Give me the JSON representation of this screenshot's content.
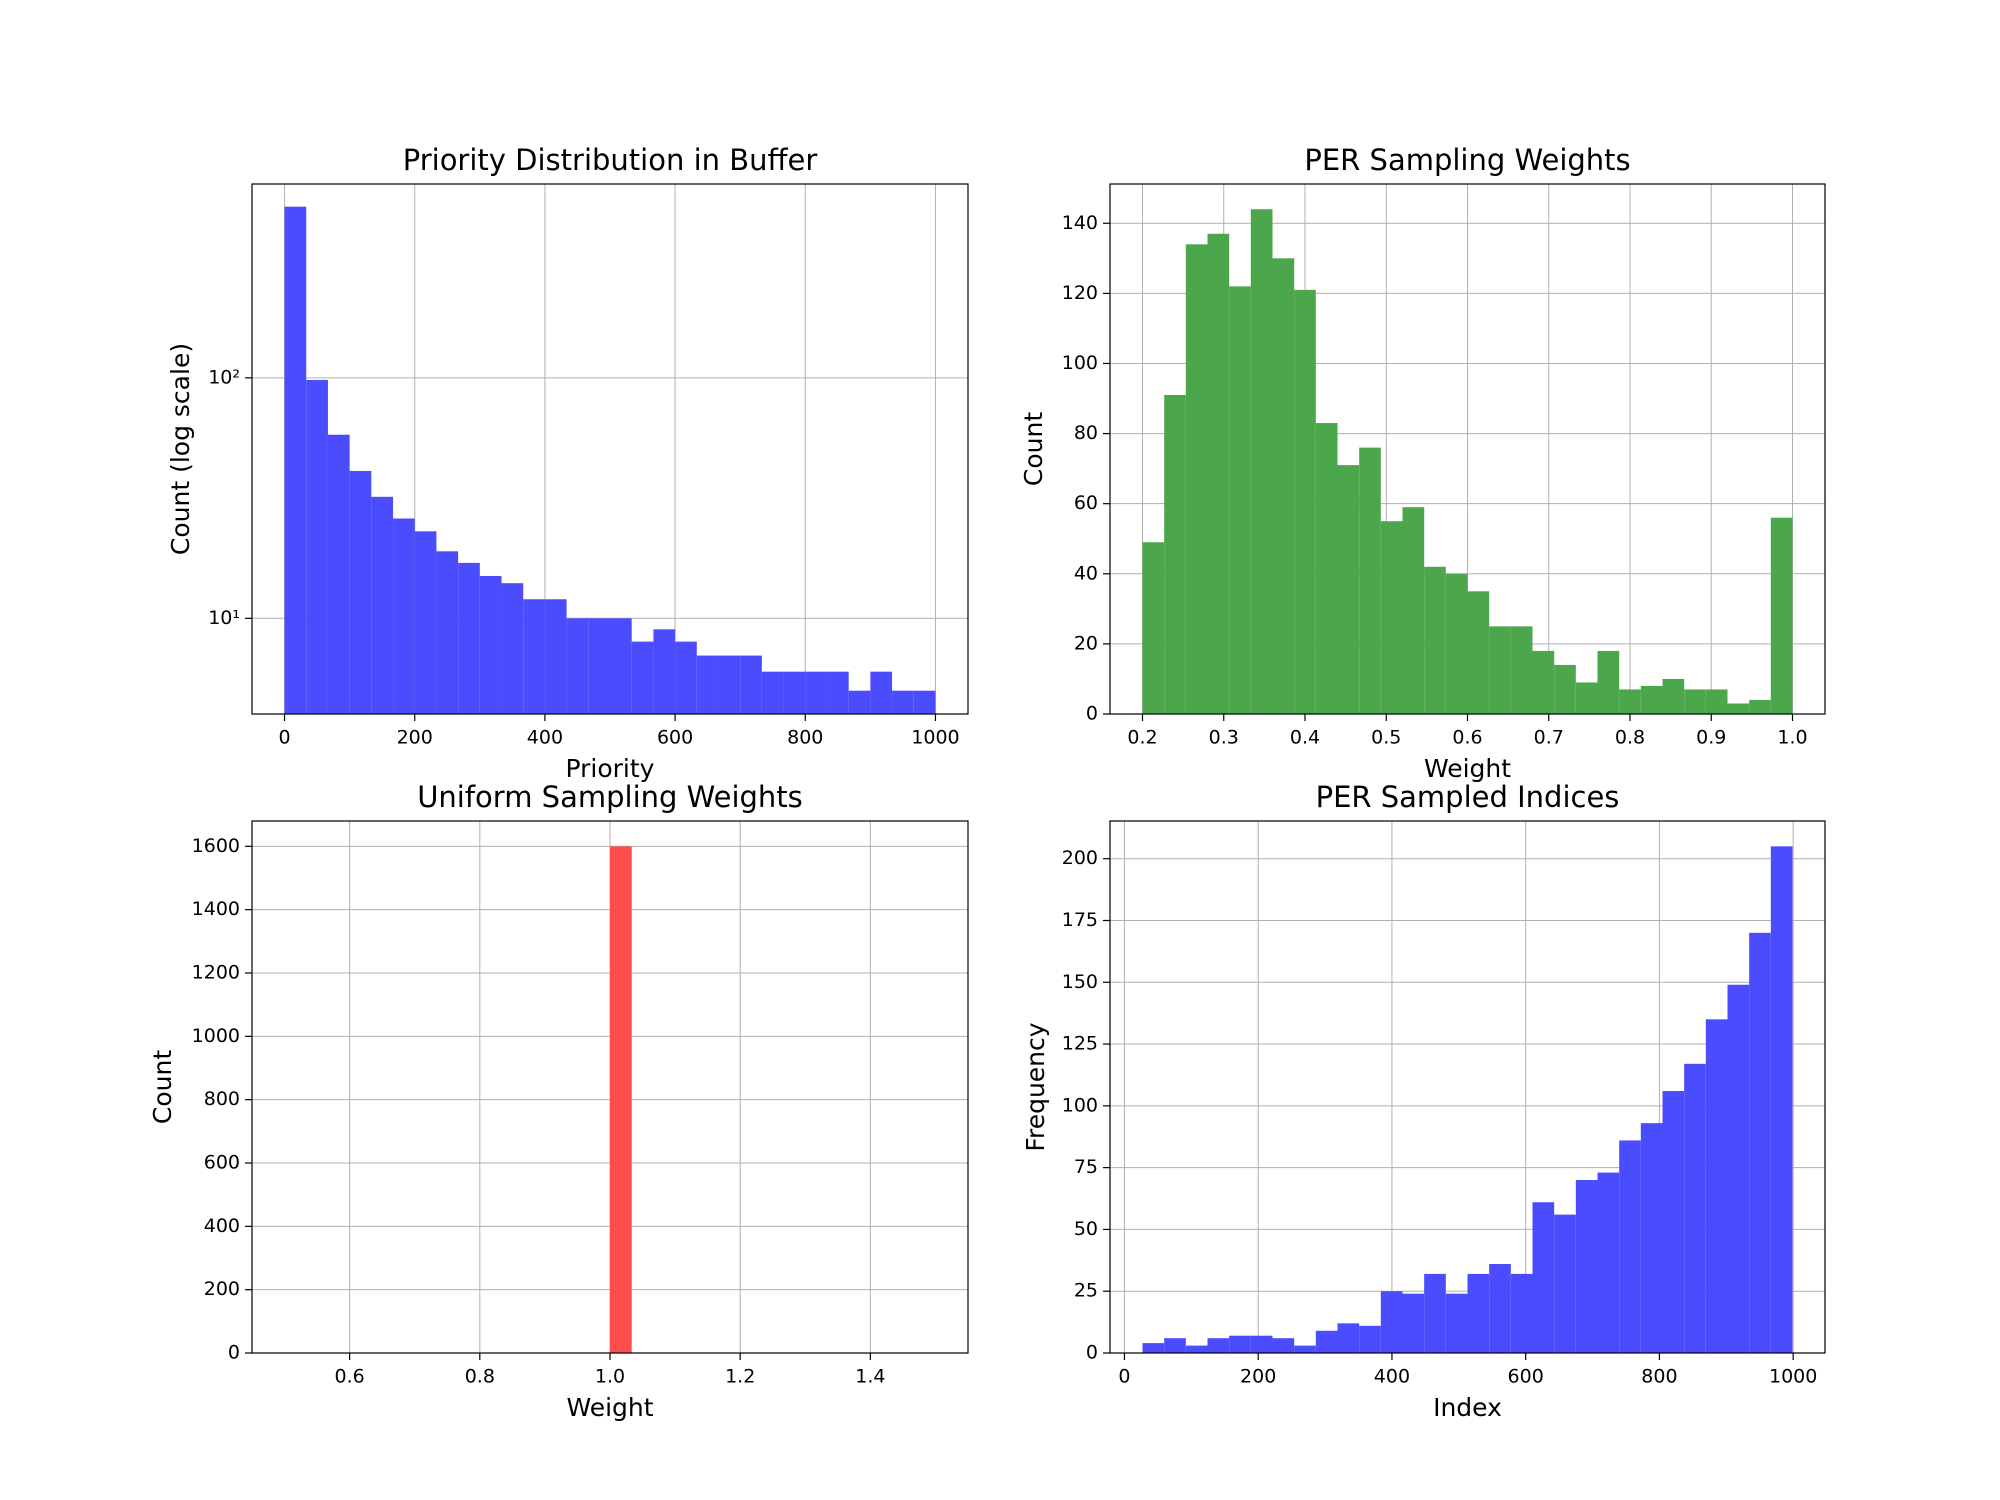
{
  "chart_data": [
    {
      "type": "histogram",
      "title": "Priority Distribution in Buffer",
      "xlabel": "Priority",
      "ylabel": "Count (log scale)",
      "color": "#4c4cff",
      "grid": true,
      "yscale": "log",
      "bins": [
        0,
        33.33,
        66.67,
        100,
        133.33,
        166.67,
        200,
        233.33,
        266.67,
        300,
        333.33,
        366.67,
        400,
        433.33,
        466.67,
        500,
        533.33,
        566.67,
        600,
        633.33,
        666.67,
        700,
        733.33,
        766.67,
        800,
        833.33,
        866.67,
        900,
        933.33,
        966.67,
        1000
      ],
      "values": [
        515,
        98,
        58,
        41,
        32,
        26,
        23,
        19,
        17,
        15,
        14,
        12,
        12,
        10,
        10,
        10,
        8,
        9,
        8,
        7,
        7,
        7,
        6,
        6,
        6,
        6,
        5,
        6,
        5,
        5
      ],
      "xlim": [
        -50,
        1050
      ],
      "xticks": [
        0,
        200,
        400,
        600,
        800,
        1000
      ],
      "ylim": [
        4,
        640
      ],
      "yticks": [
        {
          "value": 10,
          "label": "10¹"
        },
        {
          "value": 100,
          "label": "10²"
        }
      ]
    },
    {
      "type": "histogram",
      "title": "PER Sampling Weights",
      "xlabel": "Weight",
      "ylabel": "Count",
      "color": "#4ca64c",
      "grid": true,
      "bins": [
        0.2,
        0.2267,
        0.2533,
        0.28,
        0.3067,
        0.3333,
        0.36,
        0.3867,
        0.4133,
        0.44,
        0.4667,
        0.4933,
        0.52,
        0.5467,
        0.5733,
        0.6,
        0.6267,
        0.6533,
        0.68,
        0.7067,
        0.7333,
        0.76,
        0.7867,
        0.8133,
        0.84,
        0.8667,
        0.8933,
        0.92,
        0.9467,
        0.9733,
        1.0
      ],
      "values": [
        49,
        91,
        134,
        137,
        122,
        144,
        130,
        121,
        83,
        71,
        76,
        55,
        59,
        42,
        40,
        35,
        25,
        25,
        18,
        14,
        9,
        18,
        7,
        8,
        10,
        7,
        7,
        3,
        4,
        56
      ],
      "xlim": [
        0.16,
        1.04
      ],
      "xticks": [
        0.2,
        0.3,
        0.4,
        0.5,
        0.6,
        0.7,
        0.8,
        0.9,
        {
          "value": 1,
          "label": "1.0"
        }
      ],
      "ylim": [
        0,
        151.2
      ],
      "yticks": [
        0,
        20,
        40,
        60,
        80,
        100,
        120,
        140
      ]
    },
    {
      "type": "histogram",
      "title": "Uniform Sampling Weights",
      "xlabel": "Weight",
      "ylabel": "Count",
      "color": "#ff4c4c",
      "grid": true,
      "bins": [
        0.5,
        0.5333,
        0.5667,
        0.6,
        0.6333,
        0.6667,
        0.7,
        0.7333,
        0.7667,
        0.8,
        0.8333,
        0.8667,
        0.9,
        0.9333,
        0.9667,
        1.0,
        1.0333,
        1.0667,
        1.1,
        1.1333,
        1.1667,
        1.2,
        1.2333,
        1.2667,
        1.3,
        1.3333,
        1.3667,
        1.4,
        1.4333,
        1.4667,
        1.5
      ],
      "values": [
        0,
        0,
        0,
        0,
        0,
        0,
        0,
        0,
        0,
        0,
        0,
        0,
        0,
        0,
        0,
        1600,
        0,
        0,
        0,
        0,
        0,
        0,
        0,
        0,
        0,
        0,
        0,
        0,
        0,
        0
      ],
      "xlim": [
        0.45,
        1.55
      ],
      "xticks": [
        0.6,
        0.8,
        {
          "value": 1,
          "label": "1.0"
        },
        1.2,
        1.4
      ],
      "ylim": [
        0,
        1680
      ],
      "yticks": [
        0,
        200,
        400,
        600,
        800,
        1000,
        1200,
        1400,
        1600
      ]
    },
    {
      "type": "histogram",
      "title": "PER Sampled Indices",
      "xlabel": "Index",
      "ylabel": "Frequency",
      "color": "#4c4cff",
      "grid": true,
      "bins": [
        27,
        59.4,
        91.8,
        124.2,
        156.6,
        189,
        221.4,
        253.8,
        286.2,
        318.6,
        351,
        383.4,
        415.8,
        448.2,
        480.6,
        513,
        545.4,
        577.8,
        610.2,
        642.6,
        675,
        707.4,
        739.8,
        772.2,
        804.6,
        837,
        869.4,
        901.8,
        934.2,
        966.6,
        999
      ],
      "values": [
        4,
        6,
        3,
        6,
        7,
        7,
        6,
        3,
        9,
        12,
        11,
        25,
        24,
        32,
        24,
        32,
        36,
        32,
        61,
        56,
        70,
        73,
        86,
        93,
        106,
        117,
        135,
        149,
        170,
        205
      ],
      "xlim": [
        -21.6,
        1047.6
      ],
      "xticks": [
        0,
        200,
        400,
        600,
        800,
        1000
      ],
      "ylim": [
        0,
        215.25
      ],
      "yticks": [
        0,
        25,
        50,
        75,
        100,
        125,
        150,
        175,
        200
      ]
    }
  ]
}
